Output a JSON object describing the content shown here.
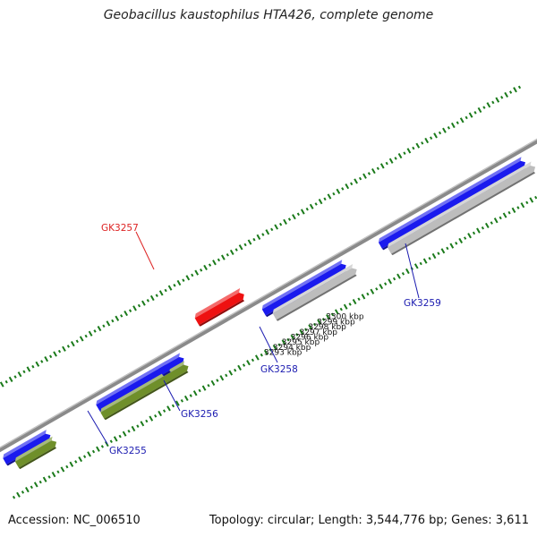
{
  "title": "Geobacillus kaustophilus HTA426, complete genome",
  "footer": {
    "accession": "Accession: NC_006510",
    "summary": "Topology: circular; Length: 3,544,776 bp; Genes: 3,611"
  },
  "colors": {
    "forward_gene": "#1a1aee",
    "highlight_gene": "#ee1111",
    "rna_or_pseudo": "#bdbdbd",
    "other_feature": "#6f8f2a",
    "backbone": "#8a8a8a",
    "tick": "#1a7a1a",
    "label_blue": "#1a1ab0",
    "label_red": "#dd2222"
  },
  "tick_labels": [
    "3293 kbp",
    "3294 kbp",
    "3295 kbp",
    "3296 kbp",
    "3297 kbp",
    "3298 kbp",
    "3299 kbp",
    "3300 kbp"
  ],
  "genes": [
    {
      "label": "GK3255",
      "color": "blue"
    },
    {
      "label": "GK3256",
      "color": "blue"
    },
    {
      "label": "GK3257",
      "color": "red"
    },
    {
      "label": "GK3258",
      "color": "blue"
    },
    {
      "label": "GK3259",
      "color": "blue"
    }
  ]
}
